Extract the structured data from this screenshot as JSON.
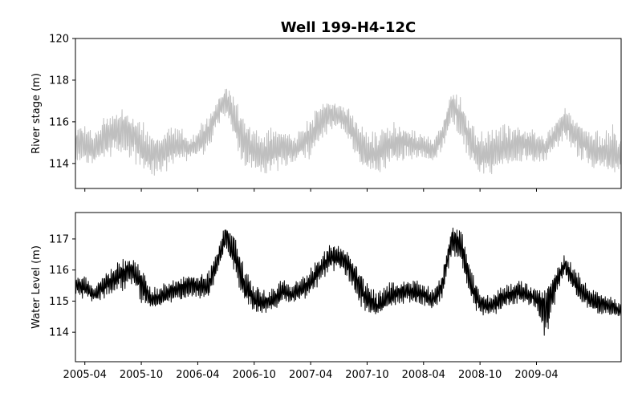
{
  "chart_data": [
    {
      "type": "line",
      "title": "Well 199-H4-12C",
      "xlabel": "",
      "ylabel": "River stage (m)",
      "ylim": [
        112.8,
        120.0
      ],
      "yticks": [
        "114",
        "116",
        "118",
        "120"
      ],
      "xlim": [
        "2005-03",
        "2010-01"
      ],
      "x_tick_values": [
        "2005-04",
        "2005-10",
        "2006-04",
        "2006-10",
        "2007-04",
        "2007-10",
        "2008-04",
        "2008-10",
        "2009-04"
      ],
      "x_tick_labels_shown": false,
      "grid": false,
      "line_color": "#bfbfbf",
      "series": [
        {
          "name": "",
          "x": [
            "2005-03",
            "2005-04",
            "2005-05",
            "2005-06",
            "2005-07",
            "2005-08",
            "2005-09",
            "2005-10",
            "2005-11",
            "2005-12",
            "2006-01",
            "2006-02",
            "2006-03",
            "2006-04",
            "2006-05",
            "2006-06",
            "2006-07",
            "2006-08",
            "2006-09",
            "2006-10",
            "2006-11",
            "2006-12",
            "2007-01",
            "2007-02",
            "2007-03",
            "2007-04",
            "2007-05",
            "2007-06",
            "2007-07",
            "2007-08",
            "2007-09",
            "2007-10",
            "2007-11",
            "2007-12",
            "2008-01",
            "2008-02",
            "2008-03",
            "2008-04",
            "2008-05",
            "2008-06",
            "2008-07",
            "2008-08",
            "2008-09",
            "2008-10",
            "2008-11",
            "2008-12",
            "2009-01",
            "2009-02",
            "2009-03",
            "2009-04",
            "2009-05",
            "2009-06",
            "2009-07",
            "2009-08",
            "2009-09",
            "2009-10",
            "2009-11",
            "2009-12",
            "2010-01"
          ],
          "y": [
            115.0,
            114.8,
            114.6,
            115.2,
            115.4,
            115.6,
            115.5,
            114.8,
            114.4,
            114.5,
            114.8,
            114.9,
            114.7,
            115.0,
            115.4,
            116.3,
            117.2,
            116.0,
            115.0,
            114.5,
            114.4,
            114.6,
            114.8,
            114.6,
            114.9,
            115.3,
            116.0,
            116.4,
            116.3,
            116.1,
            115.0,
            114.4,
            114.5,
            114.8,
            114.9,
            115.0,
            114.9,
            114.8,
            114.6,
            115.3,
            116.9,
            116.2,
            115.0,
            114.4,
            114.5,
            114.7,
            114.8,
            115.0,
            114.9,
            114.8,
            114.7,
            115.5,
            116.0,
            115.4,
            115.0,
            114.6,
            114.5,
            114.5,
            114.3
          ],
          "range_min": [
            114.2,
            113.9,
            114.0,
            114.3,
            114.3,
            114.3,
            114.1,
            113.6,
            113.4,
            113.4,
            113.7,
            114.0,
            114.0,
            114.3,
            114.4,
            115.6,
            116.2,
            114.8,
            113.6,
            113.5,
            113.4,
            113.5,
            113.8,
            113.9,
            114.2,
            114.2,
            114.9,
            115.5,
            115.5,
            115.0,
            114.0,
            113.5,
            113.4,
            113.6,
            114.0,
            114.1,
            114.1,
            114.1,
            114.0,
            114.5,
            116.0,
            115.0,
            113.8,
            113.4,
            113.4,
            113.6,
            113.7,
            113.9,
            114.0,
            114.0,
            114.0,
            114.6,
            115.1,
            114.4,
            114.0,
            113.7,
            113.6,
            113.5,
            113.4
          ],
          "range_max": [
            116.0,
            116.0,
            115.5,
            116.5,
            116.8,
            116.7,
            116.5,
            116.2,
            115.6,
            115.6,
            116.0,
            115.9,
            115.3,
            115.7,
            116.5,
            117.0,
            117.8,
            117.2,
            116.3,
            115.8,
            115.6,
            115.8,
            116.0,
            115.3,
            115.7,
            116.4,
            117.0,
            117.2,
            117.0,
            116.8,
            116.2,
            115.6,
            115.6,
            116.0,
            116.0,
            115.9,
            115.7,
            115.5,
            115.3,
            116.0,
            117.6,
            117.2,
            116.2,
            115.5,
            115.7,
            116.0,
            116.0,
            116.1,
            115.8,
            115.6,
            115.4,
            116.2,
            116.8,
            116.4,
            115.9,
            115.6,
            115.7,
            115.9,
            115.6
          ]
        }
      ]
    },
    {
      "type": "line",
      "title": "",
      "xlabel": "",
      "ylabel": "Water Level (m)",
      "ylim": [
        113.05,
        117.85
      ],
      "yticks": [
        "114",
        "115",
        "116",
        "117"
      ],
      "xlim": [
        "2005-03",
        "2010-01"
      ],
      "x_tick_values": [
        "2005-04",
        "2005-10",
        "2006-04",
        "2006-10",
        "2007-04",
        "2007-10",
        "2008-04",
        "2008-10",
        "2009-04"
      ],
      "x_tick_labels": [
        "2005-04",
        "2005-10",
        "2006-04",
        "2006-10",
        "2007-04",
        "2007-10",
        "2008-04",
        "2008-10",
        "2009-04"
      ],
      "grid": false,
      "line_color": "#000000",
      "series": [
        {
          "name": "",
          "x": [
            "2005-03",
            "2005-04",
            "2005-05",
            "2005-06",
            "2005-07",
            "2005-08",
            "2005-09",
            "2005-10",
            "2005-11",
            "2005-12",
            "2006-01",
            "2006-02",
            "2006-03",
            "2006-04",
            "2006-05",
            "2006-06",
            "2006-07",
            "2006-08",
            "2006-09",
            "2006-10",
            "2006-11",
            "2006-12",
            "2007-01",
            "2007-02",
            "2007-03",
            "2007-04",
            "2007-05",
            "2007-06",
            "2007-07",
            "2007-08",
            "2007-09",
            "2007-10",
            "2007-11",
            "2007-12",
            "2008-01",
            "2008-02",
            "2008-03",
            "2008-04",
            "2008-05",
            "2008-06",
            "2008-07",
            "2008-08",
            "2008-09",
            "2008-10",
            "2008-11",
            "2008-12",
            "2009-01",
            "2009-02",
            "2009-03",
            "2009-04",
            "2009-05",
            "2009-06",
            "2009-07",
            "2009-08",
            "2009-09",
            "2009-10",
            "2009-11",
            "2009-12",
            "2010-01"
          ],
          "y": [
            115.6,
            115.4,
            115.2,
            115.5,
            115.7,
            115.9,
            116.1,
            115.6,
            115.0,
            115.1,
            115.3,
            115.4,
            115.5,
            115.5,
            115.4,
            116.2,
            117.2,
            116.4,
            115.5,
            115.0,
            114.9,
            115.0,
            115.3,
            115.2,
            115.4,
            115.6,
            116.0,
            116.4,
            116.4,
            116.2,
            115.6,
            115.0,
            114.8,
            115.0,
            115.2,
            115.3,
            115.3,
            115.2,
            115.0,
            115.5,
            117.1,
            116.8,
            115.5,
            114.9,
            114.8,
            115.0,
            115.2,
            115.3,
            115.2,
            115.1,
            114.9,
            115.6,
            116.2,
            115.7,
            115.2,
            115.0,
            114.9,
            114.8,
            114.6
          ],
          "range_min": [
            115.2,
            115.0,
            114.9,
            115.0,
            115.2,
            115.3,
            115.4,
            114.8,
            114.7,
            114.8,
            114.9,
            115.0,
            115.1,
            115.1,
            115.0,
            115.7,
            116.6,
            115.7,
            114.9,
            114.6,
            114.6,
            114.7,
            114.9,
            114.9,
            115.0,
            115.1,
            115.6,
            115.9,
            116.0,
            115.7,
            114.9,
            114.6,
            114.5,
            114.7,
            114.8,
            114.9,
            114.9,
            114.8,
            114.7,
            115.0,
            116.4,
            116.0,
            114.9,
            114.5,
            114.5,
            114.6,
            114.8,
            114.9,
            114.9,
            114.7,
            113.3,
            115.0,
            115.7,
            115.2,
            114.8,
            114.6,
            114.5,
            114.5,
            114.5
          ],
          "range_max": [
            115.8,
            115.8,
            115.5,
            115.9,
            116.1,
            116.4,
            116.4,
            116.1,
            115.5,
            115.5,
            115.7,
            115.8,
            115.9,
            115.9,
            115.9,
            116.6,
            117.6,
            117.1,
            116.1,
            115.6,
            115.4,
            115.5,
            115.7,
            115.6,
            115.8,
            116.1,
            116.5,
            116.9,
            116.8,
            116.6,
            116.2,
            115.6,
            115.3,
            115.6,
            115.7,
            115.7,
            115.7,
            115.6,
            115.4,
            116.0,
            117.4,
            117.3,
            116.2,
            115.4,
            115.2,
            115.4,
            115.6,
            115.7,
            115.6,
            115.5,
            115.5,
            116.0,
            116.5,
            116.1,
            115.7,
            115.4,
            115.3,
            115.2,
            115.0
          ]
        }
      ]
    }
  ]
}
